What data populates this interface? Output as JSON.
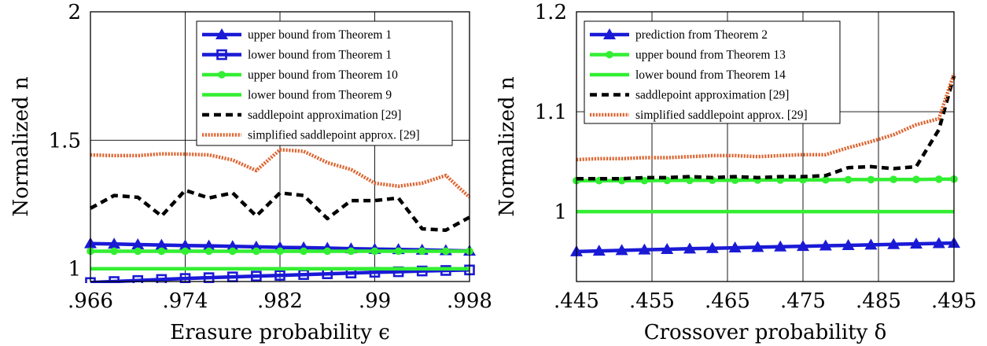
{
  "chart_data": [
    {
      "type": "line",
      "xlabel": "Erasure probability ϵ",
      "ylabel": "Normalized n",
      "xlim": [
        0.966,
        0.998
      ],
      "ylim": [
        0.95,
        2
      ],
      "xticks": [
        0.966,
        0.974,
        0.982,
        0.99,
        0.998
      ],
      "xtick_labels": [
        ".966",
        ".974",
        ".982",
        ".99",
        ".998"
      ],
      "yticks": [
        1,
        1.5,
        2
      ],
      "ytick_labels": [
        "1",
        "1.5",
        "2"
      ],
      "grid": true,
      "legend_position": "top-right",
      "x": [
        0.966,
        0.968,
        0.97,
        0.972,
        0.974,
        0.976,
        0.978,
        0.98,
        0.982,
        0.984,
        0.986,
        0.988,
        0.99,
        0.992,
        0.994,
        0.996,
        0.998
      ],
      "series": [
        {
          "name": "upper bound from Theorem 1",
          "color": "#1a1ad6",
          "marker": "triangle",
          "values": [
            1.098,
            1.096,
            1.094,
            1.092,
            1.09,
            1.089,
            1.087,
            1.085,
            1.083,
            1.082,
            1.08,
            1.078,
            1.076,
            1.075,
            1.073,
            1.071,
            1.069
          ]
        },
        {
          "name": "lower bound from Theorem 1",
          "color": "#1a1ad6",
          "marker": "square",
          "values": [
            0.946,
            0.95,
            0.954,
            0.958,
            0.962,
            0.965,
            0.968,
            0.971,
            0.974,
            0.977,
            0.98,
            0.983,
            0.986,
            0.988,
            0.991,
            0.993,
            0.995
          ]
        },
        {
          "name": "upper bound from Theorem 10",
          "color": "#33ee33",
          "marker": "circle",
          "values": [
            1.068,
            1.068,
            1.068,
            1.068,
            1.068,
            1.068,
            1.068,
            1.068,
            1.068,
            1.068,
            1.068,
            1.068,
            1.068,
            1.068,
            1.068,
            1.068,
            1.068
          ]
        },
        {
          "name": "lower bound from Theorem 9",
          "color": "#33ee33",
          "marker": "none",
          "values": [
            1,
            1,
            1,
            1,
            1,
            1,
            1,
            1,
            1,
            1,
            1,
            1,
            1,
            1,
            1,
            1,
            1
          ]
        },
        {
          "name": "saddlepoint approximation [29]",
          "color": "#000000",
          "marker": "none",
          "dash": "dashed",
          "values": [
            1.235,
            1.285,
            1.278,
            1.205,
            1.305,
            1.275,
            1.295,
            1.205,
            1.295,
            1.285,
            1.195,
            1.265,
            1.265,
            1.275,
            1.155,
            1.15,
            1.2
          ]
        },
        {
          "name": "simplified saddlepoint approx. [29]",
          "color": "#dd6633",
          "marker": "none",
          "dash": "dotted",
          "values": [
            1.443,
            1.44,
            1.44,
            1.447,
            1.446,
            1.443,
            1.423,
            1.382,
            1.463,
            1.457,
            1.413,
            1.386,
            1.333,
            1.321,
            1.333,
            1.363,
            1.278
          ]
        }
      ]
    },
    {
      "type": "line",
      "xlabel": "Crossover probability δ",
      "ylabel": "Normalized n",
      "xlim": [
        0.445,
        0.495
      ],
      "ylim": [
        0.93,
        1.2
      ],
      "xticks": [
        0.445,
        0.455,
        0.465,
        0.475,
        0.485,
        0.495
      ],
      "xtick_labels": [
        ".445",
        ".455",
        ".465",
        ".475",
        ".485",
        ".495"
      ],
      "yticks": [
        1,
        1.1,
        1.2
      ],
      "ytick_labels": [
        "1",
        "1.1",
        "1.2"
      ],
      "grid": true,
      "legend_position": "top-left",
      "x": [
        0.445,
        0.448,
        0.451,
        0.454,
        0.457,
        0.46,
        0.463,
        0.466,
        0.469,
        0.472,
        0.475,
        0.478,
        0.481,
        0.484,
        0.487,
        0.49,
        0.493,
        0.495
      ],
      "series": [
        {
          "name": "prediction from Theorem 2",
          "color": "#1a1ad6",
          "marker": "triangle",
          "values": [
            0.96,
            0.9606,
            0.9612,
            0.9618,
            0.9623,
            0.9628,
            0.9633,
            0.9638,
            0.9643,
            0.9648,
            0.9653,
            0.9658,
            0.9662,
            0.9667,
            0.9672,
            0.9677,
            0.9682,
            0.9685
          ]
        },
        {
          "name": "upper bound from Theorem 13",
          "color": "#33ee33",
          "marker": "circle",
          "values": [
            1.031,
            1.031,
            1.031,
            1.031,
            1.0312,
            1.0312,
            1.0314,
            1.0314,
            1.0316,
            1.0316,
            1.0318,
            1.0318,
            1.032,
            1.032,
            1.0322,
            1.0322,
            1.0324,
            1.0325
          ]
        },
        {
          "name": "lower bound from Theorem 14",
          "color": "#33ee33",
          "marker": "none",
          "values": [
            1,
            1,
            1,
            1,
            1,
            1,
            1,
            1,
            1,
            1,
            1,
            1,
            1,
            1,
            1,
            1,
            1,
            1
          ]
        },
        {
          "name": "saddlepoint approximation [29]",
          "color": "#000000",
          "marker": "none",
          "dash": "dashed",
          "values": [
            1.033,
            1.033,
            1.033,
            1.034,
            1.034,
            1.035,
            1.034,
            1.035,
            1.034,
            1.035,
            1.035,
            1.036,
            1.044,
            1.045,
            1.043,
            1.045,
            1.082,
            1.136
          ]
        },
        {
          "name": "simplified saddlepoint approx. [29]",
          "color": "#dd6633",
          "marker": "none",
          "dash": "dotted",
          "values": [
            1.052,
            1.053,
            1.053,
            1.054,
            1.054,
            1.055,
            1.056,
            1.056,
            1.055,
            1.056,
            1.057,
            1.057,
            1.064,
            1.07,
            1.077,
            1.087,
            1.093,
            1.138
          ]
        }
      ]
    }
  ]
}
